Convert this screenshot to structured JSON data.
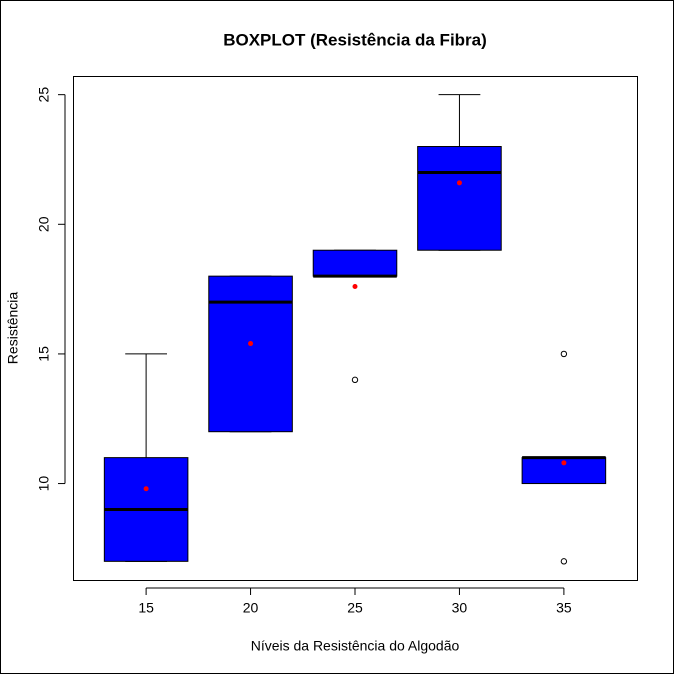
{
  "chart_data": {
    "type": "boxplot",
    "title": "BOXPLOT (Resistência da Fibra)",
    "x_label": "Níveis da Resistência do Algodão",
    "y_label": "Resistência",
    "categories": [
      "15",
      "20",
      "25",
      "30",
      "35"
    ],
    "boxes": [
      {
        "min": 7,
        "q1": 7,
        "median": 9,
        "q3": 11,
        "max": 15,
        "mean": 9.8,
        "outliers": []
      },
      {
        "min": 12,
        "q1": 12,
        "median": 17,
        "q3": 18,
        "max": 18,
        "mean": 15.4,
        "outliers": []
      },
      {
        "min": 18,
        "q1": 18,
        "median": 18,
        "q3": 19,
        "max": 19,
        "mean": 17.6,
        "outliers": [
          14
        ]
      },
      {
        "min": 19,
        "q1": 19,
        "median": 22,
        "q3": 23,
        "max": 25,
        "mean": 21.6,
        "outliers": []
      },
      {
        "min": 10,
        "q1": 10,
        "median": 11,
        "q3": 11,
        "max": 11,
        "mean": 10.8,
        "outliers": [
          7,
          15
        ]
      }
    ],
    "box_color": "#0000ff",
    "mean_color": "#ff0000",
    "ylim": [
      6.28,
      25.72
    ],
    "yticks": [
      10,
      15,
      20,
      25
    ]
  }
}
